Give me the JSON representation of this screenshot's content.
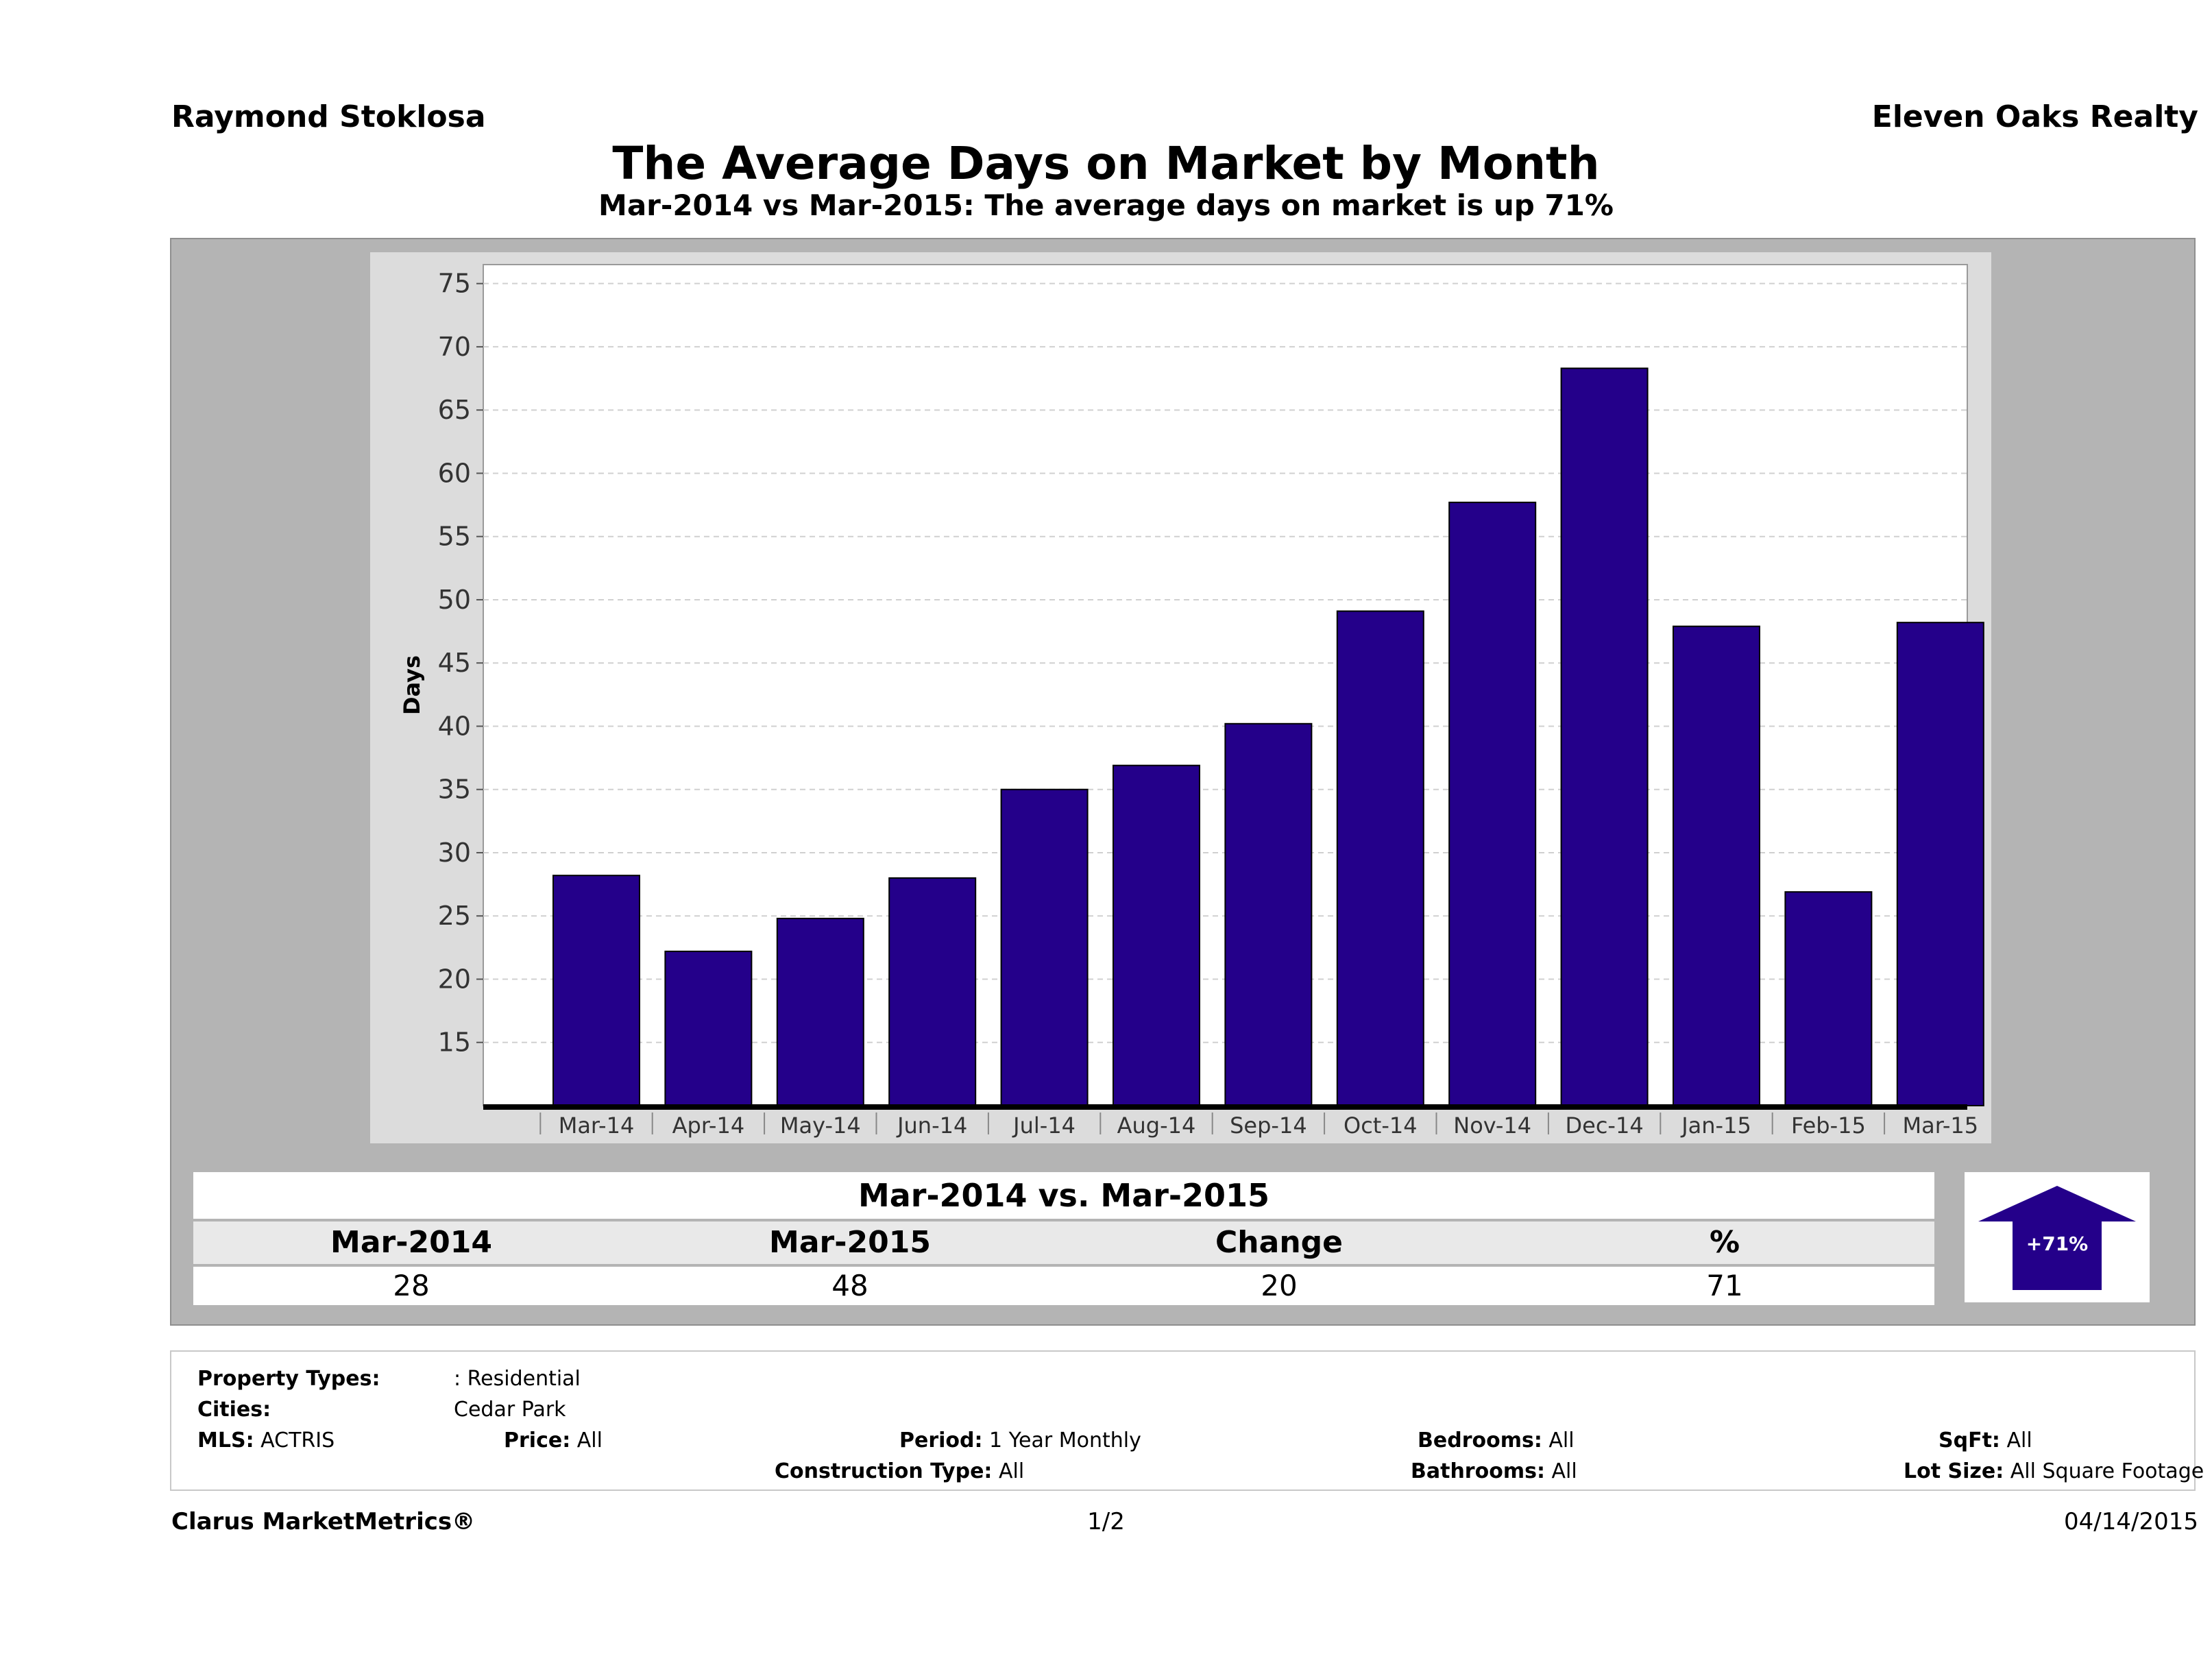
{
  "header": {
    "agent_name": "Raymond Stoklosa",
    "brokerage": "Eleven Oaks Realty",
    "title": "The Average Days on Market by Month",
    "subtitle": "Mar-2014 vs Mar-2015: The average days on market is up 71%"
  },
  "chart_data": {
    "type": "bar",
    "categories": [
      "Mar-14",
      "Apr-14",
      "May-14",
      "Jun-14",
      "Jul-14",
      "Aug-14",
      "Sep-14",
      "Oct-14",
      "Nov-14",
      "Dec-14",
      "Jan-15",
      "Feb-15",
      "Mar-15"
    ],
    "values": [
      28.2,
      22.2,
      24.8,
      28,
      35,
      36.9,
      40.2,
      49.1,
      57.7,
      68.3,
      47.9,
      26.9,
      48.2
    ],
    "ylabel": "Days",
    "ylim": [
      10,
      76.5
    ],
    "yticks": [
      15,
      20,
      25,
      30,
      35,
      40,
      45,
      50,
      55,
      60,
      65,
      70,
      75
    ],
    "grid": true,
    "bar_color": "#24008a"
  },
  "comparison": {
    "title": "Mar-2014 vs. Mar-2015",
    "headers": [
      "Mar-2014",
      "Mar-2015",
      "Change",
      "%"
    ],
    "values": [
      "28",
      "48",
      "20",
      "71"
    ],
    "badge_label": "+71%",
    "badge_color": "#24008a"
  },
  "criteria": {
    "property_types_label": "Property Types:",
    "property_types_value": ": Residential",
    "cities_label": "Cities:",
    "cities_value": "Cedar Park",
    "mls_label": "MLS:",
    "mls_value": "ACTRIS",
    "price_label": "Price:",
    "price_value": "All",
    "period_label": "Period:",
    "period_value": "1 Year Monthly",
    "construction_label": "Construction Type:",
    "construction_value": "All",
    "bedrooms_label": "Bedrooms:",
    "bedrooms_value": "All",
    "bathrooms_label": "Bathrooms:",
    "bathrooms_value": "All",
    "sqft_label": "SqFt:",
    "sqft_value": "All",
    "lot_label": "Lot Size:",
    "lot_value": "All Square Footage"
  },
  "footer": {
    "brand": "Clarus MarketMetrics®",
    "page": "1/2",
    "date": "04/14/2015"
  }
}
